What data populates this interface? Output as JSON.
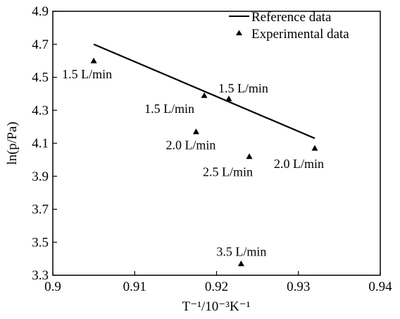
{
  "chart_data": {
    "type": "scatter",
    "xlabel": "T⁻¹/10⁻³K⁻¹",
    "ylabel": "ln(p/Pa)",
    "xlim": [
      0.9,
      0.94
    ],
    "ylim": [
      3.3,
      4.9
    ],
    "xticks": [
      0.9,
      0.91,
      0.92,
      0.93,
      0.94
    ],
    "xtick_labels": [
      "0.9",
      "0.91",
      "0.92",
      "0.93",
      "0.94"
    ],
    "yticks": [
      3.3,
      3.5,
      3.7,
      3.9,
      4.1,
      4.3,
      4.5,
      4.7,
      4.9
    ],
    "ytick_labels": [
      "3.3",
      "3.5",
      "3.7",
      "3.9",
      "4.1",
      "4.3",
      "4.5",
      "4.7",
      "4.9"
    ],
    "grid": false,
    "legend_position": "top-right",
    "series": [
      {
        "name": "Reference data",
        "kind": "line",
        "color": "#000000",
        "points": [
          {
            "x": 0.905,
            "y": 4.7
          },
          {
            "x": 0.932,
            "y": 4.13
          }
        ]
      },
      {
        "name": "Experimental data",
        "kind": "scatter",
        "marker": "triangle",
        "color": "#000000",
        "points": [
          {
            "x": 0.905,
            "y": 4.6,
            "label": "1.5 L/min"
          },
          {
            "x": 0.9185,
            "y": 4.39,
            "label": "1.5 L/min"
          },
          {
            "x": 0.9215,
            "y": 4.37,
            "label": "1.5 L/min"
          },
          {
            "x": 0.9175,
            "y": 4.17,
            "label": "2.0 L/min"
          },
          {
            "x": 0.932,
            "y": 4.07,
            "label": "2.0 L/min"
          },
          {
            "x": 0.924,
            "y": 4.02,
            "label": "2.5 L/min"
          },
          {
            "x": 0.923,
            "y": 3.37,
            "label": "3.5 L/min"
          }
        ]
      }
    ]
  }
}
